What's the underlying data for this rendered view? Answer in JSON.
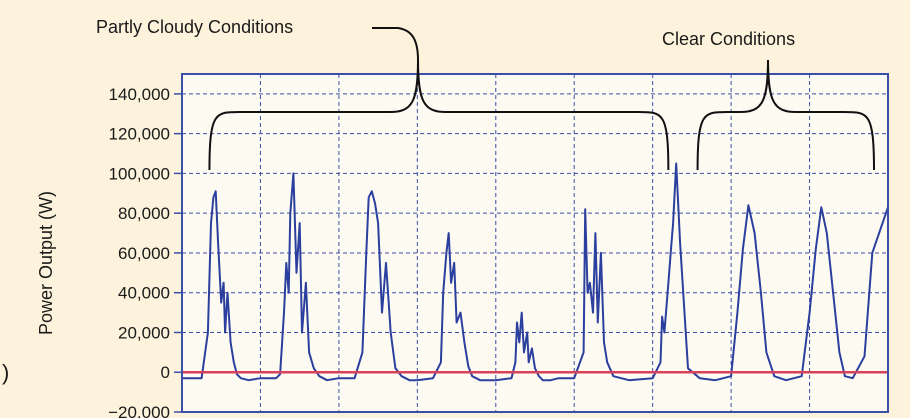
{
  "chart_data": {
    "type": "line",
    "title": "",
    "xlabel": "",
    "ylabel": "Power Output (W)",
    "ylim": [
      -20000,
      150000
    ],
    "yticks": [
      {
        "value": 140000,
        "label": "140,000"
      },
      {
        "value": 120000,
        "label": "120,000"
      },
      {
        "value": 100000,
        "label": "100,000"
      },
      {
        "value": 80000,
        "label": "80,000"
      },
      {
        "value": 60000,
        "label": "60,000"
      },
      {
        "value": 40000,
        "label": "40,000"
      },
      {
        "value": 20000,
        "label": "20,000"
      },
      {
        "value": 0,
        "label": "0"
      },
      {
        "value": -20000,
        "label": "−20,000"
      }
    ],
    "xlim": [
      0,
      9
    ],
    "grid": true,
    "colors": {
      "background": "#fdf3dc",
      "plot_background": "#fdfaf2",
      "grid": "#3b4fa8",
      "series": "#2b3f9e",
      "baseline": "#d9435a",
      "bracket": "#111111"
    },
    "series": [
      {
        "name": "",
        "x": [
          0,
          0.25,
          0.33,
          0.37,
          0.4,
          0.43,
          0.46,
          0.5,
          0.53,
          0.55,
          0.58,
          0.62,
          0.66,
          0.7,
          0.75,
          0.85,
          1.0,
          1.2,
          1.25,
          1.3,
          1.33,
          1.36,
          1.38,
          1.42,
          1.46,
          1.5,
          1.53,
          1.58,
          1.62,
          1.68,
          1.75,
          1.85,
          2.0,
          2.2,
          2.3,
          2.35,
          2.38,
          2.42,
          2.46,
          2.5,
          2.55,
          2.6,
          2.66,
          2.72,
          2.8,
          2.9,
          3.0,
          3.2,
          3.3,
          3.33,
          3.37,
          3.4,
          3.43,
          3.47,
          3.5,
          3.55,
          3.6,
          3.65,
          3.7,
          3.8,
          4.0,
          4.2,
          4.25,
          4.27,
          4.3,
          4.33,
          4.36,
          4.4,
          4.42,
          4.46,
          4.5,
          4.55,
          4.6,
          4.7,
          4.8,
          5.0,
          5.12,
          5.14,
          5.17,
          5.2,
          5.24,
          5.27,
          5.3,
          5.34,
          5.38,
          5.42,
          5.5,
          5.7,
          6.0,
          6.1,
          6.12,
          6.15,
          6.18,
          6.2,
          6.23,
          6.26,
          6.3,
          6.35,
          6.45,
          6.6,
          6.8,
          6.9,
          7.0,
          7.08,
          7.15,
          7.22,
          7.3,
          7.38,
          7.45,
          7.55,
          7.7,
          7.8,
          7.9,
          8.0,
          8.08,
          8.15,
          8.22,
          8.3,
          8.38,
          8.45,
          8.55,
          8.7,
          8.8,
          9.0
        ],
        "values": [
          -3000,
          -3000,
          20000,
          75000,
          88000,
          91000,
          65000,
          35000,
          45000,
          20000,
          40000,
          15000,
          5000,
          -1000,
          -3000,
          -4000,
          -3000,
          -3000,
          -1000,
          30000,
          55000,
          40000,
          80000,
          100000,
          50000,
          75000,
          20000,
          45000,
          10000,
          2000,
          -2000,
          -4000,
          -3000,
          -3000,
          10000,
          60000,
          88000,
          91000,
          85000,
          75000,
          30000,
          55000,
          20000,
          2000,
          -2000,
          -4000,
          -4000,
          -3000,
          5000,
          40000,
          60000,
          70000,
          45000,
          55000,
          25000,
          30000,
          15000,
          3000,
          -2000,
          -4000,
          -4000,
          -3000,
          5000,
          25000,
          15000,
          30000,
          10000,
          20000,
          5000,
          12000,
          2000,
          -2000,
          -4000,
          -4000,
          -3000,
          -3000,
          10000,
          82000,
          40000,
          45000,
          30000,
          70000,
          25000,
          60000,
          15000,
          5000,
          -2000,
          -4000,
          -3000,
          5000,
          28000,
          20000,
          35000,
          45000,
          60000,
          75000,
          105000,
          65000,
          2000,
          -3000,
          -4000,
          -3000,
          -2000,
          30000,
          62000,
          84000,
          70000,
          40000,
          10000,
          -2000,
          -4000,
          -3000,
          -2000,
          30000,
          62000,
          83000,
          70000,
          40000,
          10000,
          -2000,
          -3000,
          8000,
          60000,
          83000
        ],
        "extra_segments_note": ""
      },
      {
        "name": "",
        "x": [
          0,
          9
        ],
        "values": [
          0,
          0
        ]
      }
    ],
    "annotations": [
      {
        "text": "Partly Cloudy Conditions",
        "x_range": [
          0.35,
          6.2
        ]
      },
      {
        "text": "Clear Conditions",
        "x_range": [
          6.7,
          9.0
        ]
      }
    ],
    "left_edge_glyph": ")"
  }
}
